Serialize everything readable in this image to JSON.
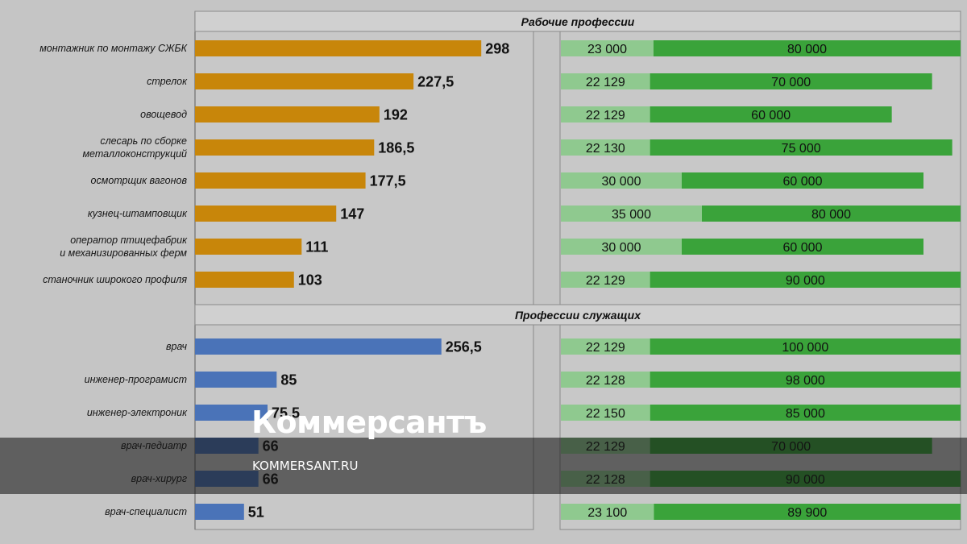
{
  "chart_data": [
    {
      "type": "bar",
      "orientation": "horizontal",
      "sections": [
        {
          "title": "Рабочие профессии",
          "color": "#c8860a",
          "categories": [
            [
              "монтажник по монтажу СЖБК"
            ],
            [
              "стрелок"
            ],
            [
              "овощевод"
            ],
            [
              "слесарь по сборке",
              "металлоконструкций"
            ],
            [
              "осмотрщик вагонов"
            ],
            [
              "кузнец-штамповщик"
            ],
            [
              "оператор птицефабрик",
              "и механизированных ферм"
            ],
            [
              "станочник широкого профиля"
            ]
          ],
          "values": [
            298,
            227.5,
            192,
            186.5,
            177.5,
            147,
            111,
            103
          ],
          "labels": [
            "298",
            "227,5",
            "192",
            "186,5",
            "177,5",
            "147",
            "111",
            "103"
          ]
        },
        {
          "title": "Профессии служащих",
          "color": "#4a73b8",
          "categories": [
            [
              "врач"
            ],
            [
              "инженер-програмист"
            ],
            [
              "инженер-электроник"
            ],
            [
              "врач-педиатр"
            ],
            [
              "врач-хирург"
            ],
            [
              "врач-специалист"
            ]
          ],
          "values": [
            256.5,
            85,
            75.5,
            66,
            66,
            51
          ],
          "labels": [
            "256,5",
            "85",
            "75,5",
            "66",
            "66",
            "51"
          ]
        }
      ],
      "xlim": [
        0,
        380
      ]
    },
    {
      "type": "bar",
      "orientation": "horizontal",
      "stacked": true,
      "series_colors": [
        "#8fc98f",
        "#3aa33a"
      ],
      "sections": [
        {
          "min": [
            23000,
            22129,
            22129,
            22130,
            30000,
            35000,
            30000,
            22129
          ],
          "max": [
            80000,
            70000,
            60000,
            75000,
            60000,
            80000,
            60000,
            90000
          ],
          "min_labels": [
            "23 000",
            "22 129",
            "22 129",
            "22 130",
            "30 000",
            "35 000",
            "30 000",
            "22 129"
          ],
          "max_labels": [
            "80 000",
            "70 000",
            "60 000",
            "75 000",
            "60 000",
            "80 000",
            "60 000",
            "90 000"
          ]
        },
        {
          "min": [
            22129,
            22128,
            22150,
            22129,
            22128,
            23100
          ],
          "max": [
            100000,
            98000,
            85000,
            70000,
            90000,
            89900
          ],
          "min_labels": [
            "22 129",
            "22 128",
            "22 150",
            "22 129",
            "22 128",
            "23 100"
          ],
          "max_labels": [
            "100 000",
            "98 000",
            "85 000",
            "70 000",
            "90 000",
            "89 900"
          ]
        }
      ]
    }
  ],
  "watermark": {
    "logo": "Коммерсантъ",
    "url": "KOMMERSANT.RU"
  }
}
